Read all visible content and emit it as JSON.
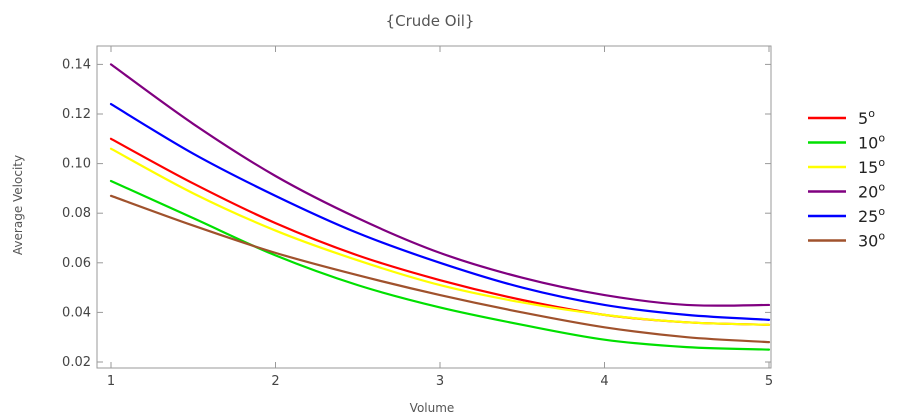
{
  "chart_data": {
    "type": "line",
    "title": "{Crude Oil}",
    "xlabel": "Volume",
    "ylabel": "Average Velocity",
    "xlim": [
      1,
      5
    ],
    "ylim": [
      0.02,
      0.145
    ],
    "xticks": [
      "1",
      "2",
      "3",
      "4",
      "5"
    ],
    "yticks": [
      "0.02",
      "0.04",
      "0.06",
      "0.08",
      "0.10",
      "0.12",
      "0.14"
    ],
    "grid": false,
    "legend_position": "right",
    "x": [
      1,
      1.5,
      2,
      2.5,
      3,
      3.5,
      4,
      4.5,
      5
    ],
    "series": [
      {
        "name": "5",
        "name_suffix": "o",
        "color": "#ff0000",
        "values": [
          0.11,
          0.092,
          0.076,
          0.063,
          0.053,
          0.045,
          0.039,
          0.036,
          0.035
        ]
      },
      {
        "name": "10",
        "name_suffix": "o",
        "color": "#00e000",
        "values": [
          0.093,
          0.078,
          0.063,
          0.051,
          0.042,
          0.035,
          0.029,
          0.026,
          0.025
        ]
      },
      {
        "name": "15",
        "name_suffix": "o",
        "color": "#ffff00",
        "values": [
          0.106,
          0.088,
          0.073,
          0.061,
          0.051,
          0.044,
          0.039,
          0.036,
          0.035
        ]
      },
      {
        "name": "20",
        "name_suffix": "o",
        "color": "#800080",
        "values": [
          0.14,
          0.116,
          0.095,
          0.078,
          0.064,
          0.054,
          0.047,
          0.043,
          0.043
        ]
      },
      {
        "name": "25",
        "name_suffix": "o",
        "color": "#0000ff",
        "values": [
          0.124,
          0.104,
          0.087,
          0.072,
          0.06,
          0.05,
          0.043,
          0.039,
          0.037
        ]
      },
      {
        "name": "30",
        "name_suffix": "o",
        "color": "#a0522d",
        "values": [
          0.087,
          0.075,
          0.064,
          0.055,
          0.047,
          0.04,
          0.034,
          0.03,
          0.028
        ]
      }
    ]
  }
}
